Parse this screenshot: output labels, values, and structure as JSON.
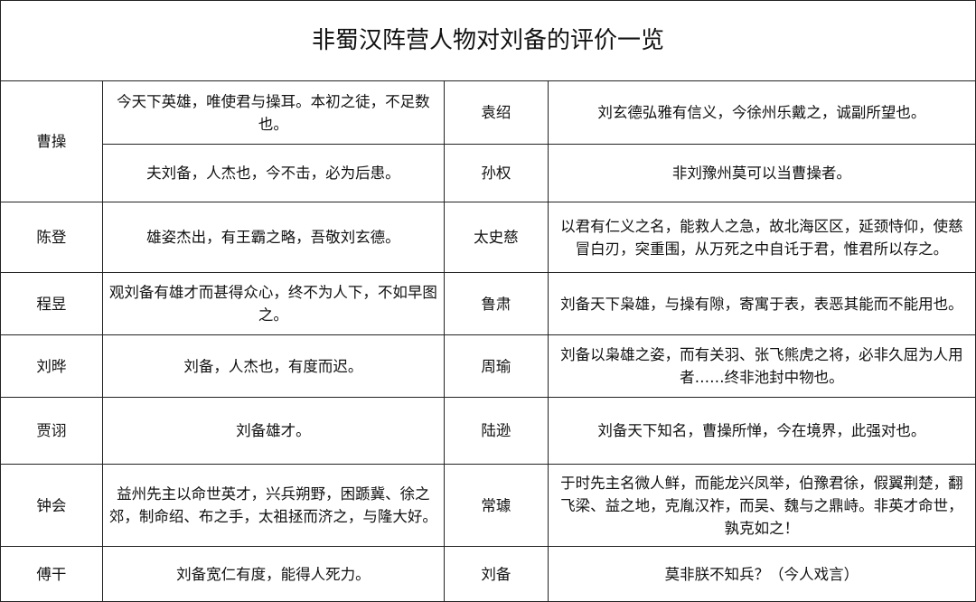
{
  "title": "非蜀汉阵营人物对刘备的评价一览",
  "rows": [
    {
      "left_name": "曹操",
      "left_quote": "今天下英雄，唯使君与操耳。本初之徒，不足数也。",
      "right_name": "袁绍",
      "right_quote": "刘玄德弘雅有信义，今徐州乐戴之，诚副所望也。"
    },
    {
      "left_name": "",
      "left_quote": "夫刘备，人杰也，今不击，必为后患。",
      "right_name": "孙权",
      "right_quote": "非刘豫州莫可以当曹操者。"
    },
    {
      "left_name": "陈登",
      "left_quote": "雄姿杰出，有王霸之略，吾敬刘玄德。",
      "right_name": "太史慈",
      "right_quote": "以君有仁义之名，能救人之急，故北海区区，延颈恃仰，使慈冒白刃，突重围，从万死之中自讬于君，惟君所以存之。"
    },
    {
      "left_name": "程昱",
      "left_quote": "观刘备有雄才而甚得众心，终不为人下，不如早图之。",
      "right_name": "鲁肃",
      "right_quote": "刘备天下枭雄，与操有隙，寄寓于表，表恶其能而不能用也。"
    },
    {
      "left_name": "刘晔",
      "left_quote": "刘备，人杰也，有度而迟。",
      "right_name": "周瑜",
      "right_quote": "刘备以枭雄之姿，而有关羽、张飞熊虎之将，必非久屈为人用者……终非池封中物也。"
    },
    {
      "left_name": "贾诩",
      "left_quote": "刘备雄才。",
      "right_name": "陆逊",
      "right_quote": "刘备天下知名，曹操所惮，今在境界，此强对也。"
    },
    {
      "left_name": "钟会",
      "left_quote": "益州先主以命世英才，兴兵朔野，困踬冀、徐之郊，制命绍、布之手，太祖拯而济之，与隆大好。",
      "right_name": "常璩",
      "right_quote": "于时先主名微人鲜，而能龙兴凤举，伯豫君徐，假翼荆楚，翻飞梁、益之地，克胤汉祚，而吴、魏与之鼎峙。非英才命世，孰克如之！"
    },
    {
      "left_name": "傅干",
      "left_quote": "刘备宽仁有度，能得人死力。",
      "right_name": "刘备",
      "right_quote": "莫非朕不知兵？（今人戏言）"
    }
  ]
}
